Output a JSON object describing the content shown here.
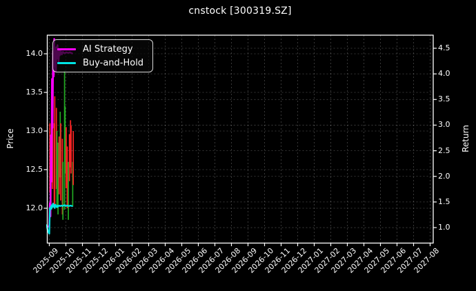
{
  "title": "cnstock [300319.SZ]",
  "legend": {
    "items": [
      {
        "label": "AI Strategy",
        "color": "#ff00ff"
      },
      {
        "label": "Buy-and-Hold",
        "color": "#00e5e5"
      }
    ]
  },
  "colors": {
    "background": "#000000",
    "text": "#ffffff",
    "spine": "#ffffff",
    "grid": "rgba(255,255,255,0.28)",
    "ai_strategy": "#ff00ff",
    "buy_and_hold": "#00e5e5",
    "price_bar_up": "#ff2424",
    "price_bar_down": "#22aa22",
    "legend_border": "#d9d9d9"
  },
  "chart_data": {
    "type": "line",
    "title": "cnstock [300319.SZ]",
    "grid": true,
    "legend_position": "upper left",
    "x_unit": "trading days since 2025-09-01 (data occupies only far left of axis)",
    "axes": {
      "left": {
        "label": "Price",
        "ticks": [
          "14.0",
          "13.5",
          "13.0",
          "12.5",
          "12.0"
        ],
        "ylim": [
          11.55,
          14.24
        ]
      },
      "right": {
        "label": "Return",
        "ticks": [
          "4.5",
          "4.0",
          "3.5",
          "3.0",
          "2.5",
          "2.0",
          "1.5",
          "1.0"
        ],
        "ylim": [
          0.7,
          4.76
        ]
      },
      "x": {
        "ticks": [
          "2025-09",
          "2025-10",
          "2025-11",
          "2025-12",
          "2026-01",
          "2026-02",
          "2026-03",
          "2026-04",
          "2026-05",
          "2026-06",
          "2026-07",
          "2026-08",
          "2026-09",
          "2026-10",
          "2026-11",
          "2026-12",
          "2027-01",
          "2027-02",
          "2027-03",
          "2027-04",
          "2027-05",
          "2027-06",
          "2027-07",
          "2027-08"
        ]
      }
    },
    "series": [
      {
        "name": "AI Strategy",
        "axis": "right",
        "color": "#ff00ff",
        "points": [
          [
            -1,
            1.02
          ],
          [
            0,
            1.05
          ],
          [
            1,
            1.48
          ],
          [
            2,
            1.22
          ],
          [
            3,
            2.8
          ],
          [
            4,
            1.9
          ],
          [
            5,
            3.9
          ],
          [
            6,
            2.95
          ],
          [
            7,
            4.45
          ],
          [
            8,
            3.95
          ],
          [
            9,
            4.68
          ],
          [
            10,
            4.15
          ],
          [
            11,
            4.45
          ],
          [
            12,
            4.05
          ],
          [
            13,
            4.52
          ],
          [
            14,
            4.3
          ],
          [
            15,
            4.56
          ],
          [
            16,
            4.38
          ],
          [
            17,
            4.24
          ],
          [
            18,
            4.47
          ],
          [
            19,
            4.36
          ],
          [
            21,
            4.44
          ],
          [
            23,
            4.38
          ],
          [
            25,
            4.43
          ],
          [
            28,
            4.4
          ],
          [
            31,
            4.42
          ],
          [
            35,
            4.41
          ],
          [
            38,
            4.42
          ],
          [
            42,
            4.4
          ]
        ]
      },
      {
        "name": "Buy-and-Hold",
        "axis": "right",
        "color": "#00e5e5",
        "points": [
          [
            -4.5,
            1.05
          ],
          [
            -4,
            1.0
          ],
          [
            -3,
            0.95
          ],
          [
            -2,
            0.92
          ],
          [
            0,
            0.88
          ],
          [
            1,
            1.38
          ],
          [
            2,
            1.35
          ],
          [
            3,
            1.42
          ],
          [
            4,
            1.37
          ],
          [
            5,
            1.44
          ],
          [
            6,
            1.4
          ],
          [
            7,
            1.47
          ],
          [
            8,
            1.41
          ],
          [
            9,
            1.44
          ],
          [
            10,
            1.38
          ],
          [
            11,
            1.45
          ],
          [
            12,
            1.42
          ],
          [
            14,
            1.4
          ],
          [
            15,
            1.43
          ],
          [
            16,
            1.41
          ],
          [
            18,
            1.43
          ],
          [
            20,
            1.42
          ],
          [
            22,
            1.43
          ],
          [
            24,
            1.42
          ],
          [
            26,
            1.43
          ],
          [
            28,
            1.44
          ],
          [
            30,
            1.42
          ],
          [
            33,
            1.43
          ],
          [
            36,
            1.42
          ],
          [
            39,
            1.43
          ],
          [
            42,
            1.42
          ]
        ]
      }
    ],
    "price_bars": {
      "name": "daily price high-low bars",
      "axis": "left",
      "format": [
        "day",
        "high",
        "low",
        "direction(up=red/down=green)"
      ],
      "bars": [
        [
          1,
          13.1,
          12.2,
          "up"
        ],
        [
          3,
          12.9,
          12.05,
          "down"
        ],
        [
          6,
          13.4,
          12.25,
          "up"
        ],
        [
          9,
          13.1,
          12.0,
          "up"
        ],
        [
          10,
          13.45,
          12.05,
          "up"
        ],
        [
          13,
          13.3,
          12.25,
          "up"
        ],
        [
          14,
          13.0,
          12.0,
          "down"
        ],
        [
          16,
          12.85,
          11.92,
          "down"
        ],
        [
          18,
          12.93,
          12.18,
          "up"
        ],
        [
          20,
          13.25,
          12.4,
          "down"
        ],
        [
          21,
          13.1,
          12.1,
          "up"
        ],
        [
          24,
          12.9,
          11.92,
          "up"
        ],
        [
          25,
          12.6,
          11.85,
          "down"
        ],
        [
          28,
          13.78,
          11.98,
          "down"
        ],
        [
          29,
          13.32,
          12.45,
          "down"
        ],
        [
          31,
          13.05,
          12.26,
          "up"
        ],
        [
          33,
          12.8,
          12.0,
          "up"
        ],
        [
          35,
          12.6,
          11.85,
          "down"
        ],
        [
          37,
          12.96,
          12.35,
          "up"
        ],
        [
          39,
          13.14,
          12.53,
          "up"
        ],
        [
          40,
          13.07,
          12.45,
          "up"
        ],
        [
          43,
          12.6,
          12.02,
          "down"
        ],
        [
          44,
          13.0,
          12.3,
          "up"
        ]
      ]
    }
  }
}
